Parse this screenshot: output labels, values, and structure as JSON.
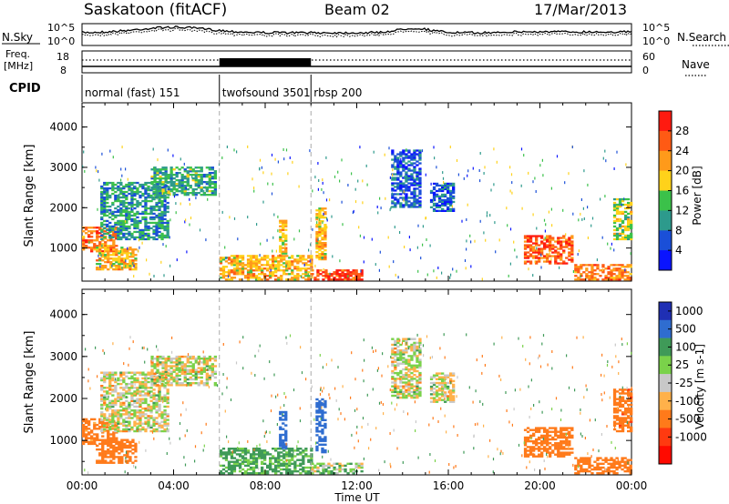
{
  "header": {
    "title": "Saskatoon (fitACF)",
    "beam": "Beam 02",
    "date": "17/Mar/2013"
  },
  "noise_panel": {
    "left_label": "N.Sky",
    "left_ticks": [
      "10^5",
      "10^0"
    ],
    "right_ticks": [
      "10^5",
      "10^0"
    ],
    "right_label": "N.Search",
    "right_label_style": "dotted"
  },
  "freq_panel": {
    "left_label_line1": "Freq.",
    "left_label_line2": "[MHz]",
    "left_ticks": [
      "18",
      "8"
    ],
    "right_ticks": [
      "60",
      "0"
    ],
    "right_label": "Nave",
    "right_label_style": "dotted"
  },
  "cpid_panel": {
    "label": "CPID",
    "modes": [
      {
        "name": "normal (fast) 151",
        "start_hour": 0
      },
      {
        "name": "twofsound 3501",
        "start_hour": 6
      },
      {
        "name": "rbsp 200",
        "start_hour": 10
      }
    ]
  },
  "chart_data": [
    {
      "type": "heatmap",
      "ylabel": "Slant Range [km]",
      "xlabel": "",
      "ylim": [
        180,
        4600
      ],
      "xlim_hours": [
        0,
        24
      ],
      "yticks": [
        "1000",
        "2000",
        "3000",
        "4000"
      ],
      "colorbar": {
        "label": "Power [dB]",
        "ticks": [
          "4",
          "8",
          "12",
          "16",
          "20",
          "24",
          "28"
        ],
        "colors": [
          "#0a14ff",
          "#1a4fd8",
          "#2d9a8c",
          "#3bc14a",
          "#ffd21a",
          "#ff9a1a",
          "#ff5a14",
          "#ff1a10"
        ]
      },
      "echo_regions": [
        {
          "t0": 0.0,
          "t1": 1.5,
          "r0": 900,
          "r1": 1500,
          "power": 24
        },
        {
          "t0": 0.6,
          "t1": 2.4,
          "r0": 450,
          "r1": 1000,
          "power": 20
        },
        {
          "t0": 0.8,
          "t1": 3.8,
          "r0": 1200,
          "r1": 2600,
          "power": 10
        },
        {
          "t0": 3.0,
          "t1": 5.8,
          "r0": 2300,
          "r1": 3000,
          "power": 12
        },
        {
          "t0": 6.0,
          "t1": 10.0,
          "r0": 200,
          "r1": 800,
          "power": 20
        },
        {
          "t0": 8.6,
          "t1": 8.9,
          "r0": 800,
          "r1": 1700,
          "power": 20
        },
        {
          "t0": 10.0,
          "t1": 12.2,
          "r0": 200,
          "r1": 450,
          "power": 28
        },
        {
          "t0": 10.2,
          "t1": 10.6,
          "r0": 700,
          "r1": 2000,
          "power": 20
        },
        {
          "t0": 13.5,
          "t1": 14.7,
          "r0": 2000,
          "r1": 3400,
          "power": 6
        },
        {
          "t0": 15.2,
          "t1": 16.2,
          "r0": 1900,
          "r1": 2600,
          "power": 6
        },
        {
          "t0": 19.3,
          "t1": 21.4,
          "r0": 600,
          "r1": 1300,
          "power": 26
        },
        {
          "t0": 21.5,
          "t1": 24.0,
          "r0": 200,
          "r1": 600,
          "power": 24
        },
        {
          "t0": 23.2,
          "t1": 24.0,
          "r0": 1200,
          "r1": 2200,
          "power": 16
        }
      ]
    },
    {
      "type": "heatmap",
      "ylabel": "Slant Range [km]",
      "xlabel": "Time UT",
      "ylim": [
        180,
        4600
      ],
      "xlim_hours": [
        0,
        24
      ],
      "xticks": [
        "00:00",
        "04:00",
        "08:00",
        "12:00",
        "16:00",
        "20:00",
        "00:00"
      ],
      "yticks": [
        "1000",
        "2000",
        "3000",
        "4000"
      ],
      "colorbar": {
        "label": "Velocity [m s-1]",
        "ticks": [
          "1000",
          "500",
          "100",
          "25",
          "-25",
          "-100",
          "-500",
          "-1000"
        ],
        "colors": [
          "#1f2fb4",
          "#2f6dd0",
          "#3f9a58",
          "#7ad24a",
          "#c8c8c8",
          "#ffb14a",
          "#ff7a1a",
          "#ff3a10",
          "#ff0a00"
        ]
      },
      "echo_regions": [
        {
          "t0": 0.0,
          "t1": 1.5,
          "r0": 900,
          "r1": 1500,
          "velocity": -200
        },
        {
          "t0": 0.6,
          "t1": 2.4,
          "r0": 450,
          "r1": 1000,
          "velocity": -300
        },
        {
          "t0": 0.8,
          "t1": 3.8,
          "r0": 1200,
          "r1": 2600,
          "velocity": 0
        },
        {
          "t0": 3.0,
          "t1": 5.8,
          "r0": 2300,
          "r1": 3000,
          "velocity": 0
        },
        {
          "t0": 6.0,
          "t1": 10.0,
          "r0": 200,
          "r1": 800,
          "velocity": 150
        },
        {
          "t0": 8.6,
          "t1": 8.9,
          "r0": 800,
          "r1": 1700,
          "velocity": 700
        },
        {
          "t0": 10.0,
          "t1": 12.2,
          "r0": 200,
          "r1": 450,
          "velocity": 60
        },
        {
          "t0": 10.2,
          "t1": 10.6,
          "r0": 700,
          "r1": 2000,
          "velocity": 700
        },
        {
          "t0": 13.5,
          "t1": 14.7,
          "r0": 2000,
          "r1": 3400,
          "velocity": 0
        },
        {
          "t0": 15.2,
          "t1": 16.2,
          "r0": 1900,
          "r1": 2600,
          "velocity": 0
        },
        {
          "t0": 19.3,
          "t1": 21.4,
          "r0": 600,
          "r1": 1300,
          "velocity": -350
        },
        {
          "t0": 21.5,
          "t1": 24.0,
          "r0": 200,
          "r1": 600,
          "velocity": -300
        },
        {
          "t0": 23.2,
          "t1": 24.0,
          "r0": 1200,
          "r1": 2200,
          "velocity": -400
        }
      ]
    }
  ]
}
